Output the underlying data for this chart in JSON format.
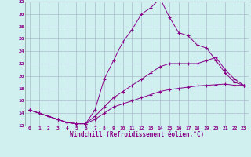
{
  "xlabel": "Windchill (Refroidissement éolien,°C)",
  "xlim": [
    -0.5,
    23.5
  ],
  "ylim": [
    12,
    32
  ],
  "xticks": [
    0,
    1,
    2,
    3,
    4,
    5,
    6,
    7,
    8,
    9,
    10,
    11,
    12,
    13,
    14,
    15,
    16,
    17,
    18,
    19,
    20,
    21,
    22,
    23
  ],
  "yticks": [
    12,
    14,
    16,
    18,
    20,
    22,
    24,
    26,
    28,
    30,
    32
  ],
  "background_color": "#d0f0f0",
  "grid_color": "#aabbcc",
  "line_color": "#880088",
  "line1_x": [
    0,
    1,
    2,
    3,
    4,
    5,
    6,
    7,
    8,
    9,
    10,
    11,
    12,
    13,
    14,
    15,
    16,
    17,
    18,
    19,
    20,
    21,
    22,
    23
  ],
  "line1_y": [
    14.5,
    14.0,
    13.5,
    13.0,
    12.5,
    12.3,
    12.3,
    14.5,
    19.5,
    22.5,
    25.5,
    27.5,
    30.0,
    31.0,
    32.5,
    29.5,
    27.0,
    26.5,
    25.0,
    24.5,
    22.5,
    20.5,
    19.0,
    18.5
  ],
  "line2_x": [
    0,
    1,
    2,
    3,
    4,
    5,
    6,
    7,
    8,
    9,
    10,
    11,
    12,
    13,
    14,
    15,
    16,
    17,
    18,
    19,
    20,
    21,
    22,
    23
  ],
  "line2_y": [
    14.5,
    14.0,
    13.5,
    13.0,
    12.5,
    12.3,
    12.3,
    13.5,
    15.0,
    16.5,
    17.5,
    18.5,
    19.5,
    20.5,
    21.5,
    22.0,
    22.0,
    22.0,
    22.0,
    22.5,
    23.0,
    21.0,
    19.5,
    18.5
  ],
  "line3_x": [
    0,
    1,
    2,
    3,
    4,
    5,
    6,
    7,
    8,
    9,
    10,
    11,
    12,
    13,
    14,
    15,
    16,
    17,
    18,
    19,
    20,
    21,
    22,
    23
  ],
  "line3_y": [
    14.5,
    14.0,
    13.5,
    13.0,
    12.5,
    12.3,
    12.3,
    13.0,
    14.0,
    15.0,
    15.5,
    16.0,
    16.5,
    17.0,
    17.5,
    17.8,
    18.0,
    18.2,
    18.4,
    18.5,
    18.6,
    18.7,
    18.5,
    18.5
  ]
}
